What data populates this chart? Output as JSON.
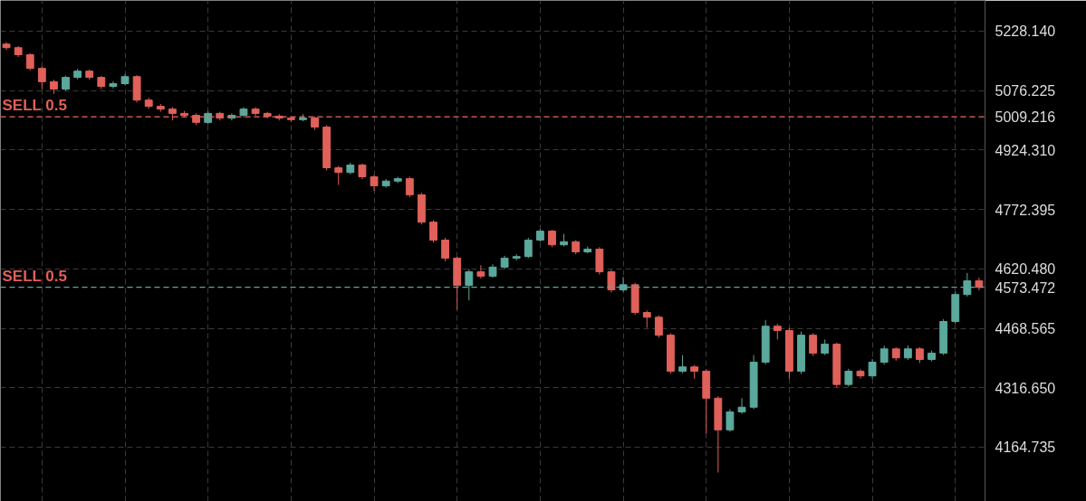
{
  "chart_data": {
    "type": "candlestick",
    "categories": [
      null,
      null,
      null,
      null,
      null,
      null,
      null,
      null,
      null,
      null,
      null,
      null,
      null,
      null,
      null,
      null,
      null,
      null,
      null,
      null,
      null,
      null,
      null,
      null,
      null,
      null,
      null,
      null,
      null,
      null,
      null,
      null,
      null,
      null,
      null,
      null,
      null,
      null,
      null,
      null,
      null,
      null,
      null,
      null,
      null,
      null,
      null,
      null,
      null,
      null,
      null,
      null,
      null,
      null,
      null,
      null,
      null,
      null,
      null,
      null,
      null,
      null,
      null,
      null,
      null,
      null,
      null,
      null,
      null,
      null,
      null,
      null,
      null,
      null,
      null,
      null,
      null,
      null,
      null,
      null,
      null,
      null,
      null
    ],
    "ohlc": [
      [
        5195,
        5200,
        5180,
        5186
      ],
      [
        5186,
        5190,
        5162,
        5168
      ],
      [
        5168,
        5172,
        5128,
        5133
      ],
      [
        5133,
        5138,
        5080,
        5099
      ],
      [
        5099,
        5104,
        5068,
        5080
      ],
      [
        5080,
        5114,
        5076,
        5110
      ],
      [
        5110,
        5132,
        5105,
        5126
      ],
      [
        5126,
        5130,
        5104,
        5110
      ],
      [
        5110,
        5114,
        5080,
        5087
      ],
      [
        5087,
        5100,
        5082,
        5094
      ],
      [
        5094,
        5118,
        5090,
        5112
      ],
      [
        5112,
        5116,
        5046,
        5052
      ],
      [
        5052,
        5058,
        5030,
        5036
      ],
      [
        5036,
        5042,
        5022,
        5029
      ],
      [
        5029,
        5034,
        5000,
        5018
      ],
      [
        5018,
        5024,
        5008,
        5013
      ],
      [
        5013,
        5018,
        4988,
        4995
      ],
      [
        4995,
        5024,
        4990,
        5018
      ],
      [
        5018,
        5022,
        5000,
        5006
      ],
      [
        5006,
        5018,
        5000,
        5013
      ],
      [
        5013,
        5034,
        5008,
        5029
      ],
      [
        5029,
        5034,
        5012,
        5018
      ],
      [
        5018,
        5022,
        5006,
        5011
      ],
      [
        5011,
        5016,
        5000,
        5006
      ],
      [
        5006,
        5010,
        4996,
        5002
      ],
      [
        5002,
        5016,
        4998,
        5006
      ],
      [
        5006,
        5010,
        4976,
        4983
      ],
      [
        4983,
        4988,
        4872,
        4879
      ],
      [
        4879,
        4884,
        4835,
        4867
      ],
      [
        4867,
        4892,
        4862,
        4886
      ],
      [
        4886,
        4890,
        4850,
        4856
      ],
      [
        4856,
        4860,
        4820,
        4833
      ],
      [
        4833,
        4850,
        4828,
        4845
      ],
      [
        4845,
        4856,
        4840,
        4851
      ],
      [
        4851,
        4856,
        4804,
        4810
      ],
      [
        4810,
        4815,
        4734,
        4740
      ],
      [
        4740,
        4745,
        4688,
        4694
      ],
      [
        4694,
        4700,
        4640,
        4648
      ],
      [
        4648,
        4652,
        4516,
        4578
      ],
      [
        4578,
        4620,
        4540,
        4613
      ],
      [
        4613,
        4630,
        4596,
        4602
      ],
      [
        4602,
        4632,
        4598,
        4625
      ],
      [
        4625,
        4654,
        4620,
        4648
      ],
      [
        4648,
        4658,
        4642,
        4652
      ],
      [
        4652,
        4700,
        4648,
        4694
      ],
      [
        4694,
        4722,
        4690,
        4717
      ],
      [
        4717,
        4720,
        4676,
        4682
      ],
      [
        4682,
        4710,
        4678,
        4690
      ],
      [
        4690,
        4694,
        4658,
        4664
      ],
      [
        4664,
        4678,
        4660,
        4671
      ],
      [
        4671,
        4676,
        4606,
        4613
      ],
      [
        4613,
        4618,
        4560,
        4567
      ],
      [
        4567,
        4600,
        4562,
        4580
      ],
      [
        4580,
        4585,
        4503,
        4509
      ],
      [
        4509,
        4514,
        4470,
        4497
      ],
      [
        4497,
        4502,
        4445,
        4451
      ],
      [
        4451,
        4456,
        4353,
        4359
      ],
      [
        4359,
        4400,
        4354,
        4370
      ],
      [
        4370,
        4375,
        4340,
        4359
      ],
      [
        4359,
        4364,
        4200,
        4290
      ],
      [
        4290,
        4295,
        4100,
        4209
      ],
      [
        4209,
        4262,
        4204,
        4255
      ],
      [
        4255,
        4290,
        4250,
        4267
      ],
      [
        4267,
        4400,
        4262,
        4382
      ],
      [
        4382,
        4490,
        4376,
        4474
      ],
      [
        4474,
        4480,
        4440,
        4463
      ],
      [
        4463,
        4470,
        4340,
        4359
      ],
      [
        4359,
        4460,
        4352,
        4451
      ],
      [
        4451,
        4456,
        4398,
        4405
      ],
      [
        4405,
        4440,
        4400,
        4428
      ],
      [
        4428,
        4432,
        4318,
        4325
      ],
      [
        4325,
        4365,
        4320,
        4359
      ],
      [
        4359,
        4364,
        4340,
        4347
      ],
      [
        4347,
        4390,
        4340,
        4382
      ],
      [
        4382,
        4424,
        4376,
        4416
      ],
      [
        4416,
        4420,
        4386,
        4393
      ],
      [
        4393,
        4425,
        4388,
        4416
      ],
      [
        4416,
        4420,
        4380,
        4389
      ],
      [
        4389,
        4412,
        4384,
        4405
      ],
      [
        4405,
        4492,
        4400,
        4486
      ],
      [
        4486,
        4562,
        4480,
        4555
      ],
      [
        4555,
        4610,
        4550,
        4590
      ],
      [
        4590,
        4598,
        4566,
        4573.472
      ]
    ],
    "ylim": [
      4026,
      5306.7
    ],
    "yticks": [
      4164.735,
      {
        "value": 4316.65,
        "label": "4316.650"
      },
      4468.565,
      4573.472,
      {
        "value": 4620.48,
        "label": "4620.480"
      },
      4772.395,
      {
        "value": 4924.31,
        "label": "4924.310"
      },
      5009.216,
      5076.225,
      {
        "value": 5228.14,
        "label": "5228.140"
      }
    ],
    "ref_lines": [
      {
        "axis": "y",
        "value": 5009.216,
        "label": "SELL 0.5",
        "color": "#e0605a",
        "line_style": "dashed"
      },
      {
        "axis": "y",
        "value": 4573.472,
        "label": "SELL 0.5",
        "color": "#5ba89c",
        "line_style": "dashed"
      }
    ],
    "grid": true,
    "tick_labels": "y"
  }
}
